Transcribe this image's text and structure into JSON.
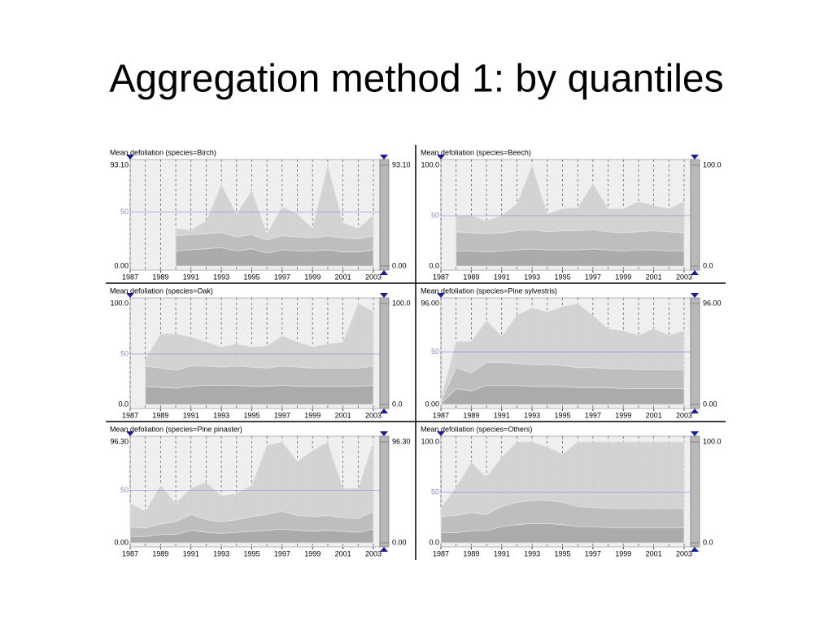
{
  "title": "Aggregation method 1: by quantiles",
  "chart_data": [
    {
      "type": "area",
      "title": "Mean defoliation (species=Birch)",
      "x": [
        1987,
        1988,
        1989,
        1990,
        1991,
        1992,
        1993,
        1994,
        1995,
        1996,
        1997,
        1998,
        1999,
        2000,
        2001,
        2002,
        2003
      ],
      "xlim": [
        1987,
        2003.43
      ],
      "xticks": [
        1987,
        1989,
        1991,
        1993,
        1995,
        1997,
        1999,
        2001,
        2003
      ],
      "ylim": [
        0,
        93.1
      ],
      "yticks": [
        {
          "value": 0,
          "label": "0.00"
        },
        50,
        {
          "value": 93.1,
          "label": "93.10"
        }
      ],
      "series": [
        {
          "color": "#d2d2d2",
          "values": [
            null,
            null,
            null,
            35,
            33,
            42,
            75,
            48,
            70,
            30,
            55,
            48,
            35,
            93.1,
            40,
            35,
            47
          ]
        },
        {
          "color": "#bdbdbd",
          "values": [
            null,
            null,
            null,
            28,
            29,
            30,
            31,
            27,
            29,
            24,
            28,
            27,
            26,
            28,
            26,
            25,
            28
          ]
        },
        {
          "color": "#aaaaaa",
          "values": [
            null,
            null,
            null,
            14,
            15,
            16,
            17,
            14,
            16,
            12,
            15,
            14,
            14,
            15,
            13,
            13,
            15
          ]
        }
      ]
    },
    {
      "type": "area",
      "title": "Mean defoliation (species=Beech)",
      "x": [
        1987,
        1988,
        1989,
        1990,
        1991,
        1992,
        1993,
        1994,
        1995,
        1996,
        1997,
        1998,
        1999,
        2000,
        2001,
        2002,
        2003
      ],
      "xlim": [
        1987,
        2003.43
      ],
      "xticks": [
        1987,
        1989,
        1991,
        1993,
        1995,
        1997,
        1999,
        2001,
        2003
      ],
      "ylim": [
        0,
        100
      ],
      "yticks": [
        {
          "value": 0,
          "label": "0.0"
        },
        50,
        {
          "value": 100,
          "label": "100.0"
        }
      ],
      "series": [
        {
          "color": "#d2d2d2",
          "values": [
            null,
            50,
            50,
            45,
            50,
            62,
            100,
            52,
            57,
            58,
            82,
            57,
            57,
            64,
            60,
            57,
            64
          ]
        },
        {
          "color": "#bdbdbd",
          "values": [
            null,
            34,
            33,
            32,
            33,
            35,
            36,
            34,
            35,
            35,
            36,
            34,
            33,
            34,
            35,
            34,
            33
          ]
        },
        {
          "color": "#aaaaaa",
          "values": [
            null,
            15,
            15,
            14,
            15,
            16,
            17,
            16,
            16,
            16,
            17,
            16,
            15,
            16,
            16,
            15,
            15
          ]
        }
      ]
    },
    {
      "type": "area",
      "title": "Mean defoliation (species=Oak)",
      "x": [
        1987,
        1988,
        1989,
        1990,
        1991,
        1992,
        1993,
        1994,
        1995,
        1996,
        1997,
        1998,
        1999,
        2000,
        2001,
        2002,
        2003
      ],
      "xlim": [
        1987,
        2003.43
      ],
      "xticks": [
        1987,
        1989,
        1991,
        1993,
        1995,
        1997,
        1999,
        2001,
        2003
      ],
      "ylim": [
        0,
        100
      ],
      "yticks": [
        {
          "value": 0,
          "label": "0.0"
        },
        50,
        {
          "value": 100,
          "label": "100.0"
        }
      ],
      "series": [
        {
          "color": "#d2d2d2",
          "values": [
            null,
            45,
            70,
            70,
            67,
            62,
            57,
            60,
            57,
            58,
            68,
            62,
            57,
            60,
            62,
            100,
            92
          ]
        },
        {
          "color": "#bdbdbd",
          "values": [
            null,
            38,
            36,
            34,
            38,
            38,
            37,
            38,
            37,
            36,
            38,
            37,
            36,
            36,
            36,
            36,
            38
          ]
        },
        {
          "color": "#aaaaaa",
          "values": [
            null,
            18,
            17,
            16,
            18,
            19,
            19,
            19,
            18,
            18,
            19,
            18,
            18,
            18,
            18,
            18,
            19
          ]
        }
      ]
    },
    {
      "type": "area",
      "title": "Mean defoliation (species=Pine sylvestris)",
      "x": [
        1987,
        1988,
        1989,
        1990,
        1991,
        1992,
        1993,
        1994,
        1995,
        1996,
        1997,
        1998,
        1999,
        2000,
        2001,
        2002,
        2003
      ],
      "xlim": [
        1987,
        2003.43
      ],
      "xticks": [
        1987,
        1989,
        1991,
        1993,
        1995,
        1997,
        1999,
        2001,
        2003
      ],
      "ylim": [
        0,
        96
      ],
      "yticks": [
        {
          "value": 0,
          "label": "0.00"
        },
        50,
        {
          "value": 96,
          "label": "96.00"
        }
      ],
      "series": [
        {
          "color": "#d2d2d2",
          "values": [
            5,
            60,
            60,
            80,
            65,
            85,
            92,
            88,
            93,
            96,
            85,
            72,
            70,
            66,
            72,
            66,
            70
          ]
        },
        {
          "color": "#bdbdbd",
          "values": [
            3,
            35,
            30,
            40,
            40,
            39,
            38,
            38,
            37,
            35,
            35,
            34,
            34,
            33,
            33,
            33,
            33
          ]
        },
        {
          "color": "#aaaaaa",
          "values": [
            1,
            15,
            13,
            18,
            18,
            18,
            17,
            17,
            17,
            16,
            16,
            16,
            15,
            15,
            15,
            15,
            15
          ]
        }
      ]
    },
    {
      "type": "area",
      "title": "Mean defoliation (species=Pine pinaster)",
      "x": [
        1987,
        1988,
        1989,
        1990,
        1991,
        1992,
        1993,
        1994,
        1995,
        1996,
        1997,
        1998,
        1999,
        2000,
        2001,
        2002,
        2003
      ],
      "xlim": [
        1987,
        2003.43
      ],
      "xticks": [
        1987,
        1989,
        1991,
        1993,
        1995,
        1997,
        1999,
        2001,
        2003
      ],
      "ylim": [
        0,
        96.3
      ],
      "yticks": [
        {
          "value": 0,
          "label": "0.00"
        },
        50,
        {
          "value": 96.3,
          "label": "96.30"
        }
      ],
      "series": [
        {
          "color": "#d2d2d2",
          "values": [
            38,
            30,
            55,
            38,
            52,
            58,
            45,
            47,
            55,
            93,
            96.3,
            78,
            88,
            96.3,
            52,
            52,
            96.3
          ]
        },
        {
          "color": "#bdbdbd",
          "values": [
            15,
            14,
            18,
            20,
            27,
            22,
            20,
            22,
            25,
            27,
            30,
            26,
            25,
            26,
            24,
            23,
            30
          ]
        },
        {
          "color": "#aaaaaa",
          "values": [
            6,
            6,
            8,
            8,
            12,
            10,
            9,
            10,
            11,
            12,
            13,
            12,
            11,
            12,
            11,
            10,
            13
          ]
        }
      ]
    },
    {
      "type": "area",
      "title": "Mean defoliation (species=Others)",
      "x": [
        1987,
        1988,
        1989,
        1990,
        1991,
        1992,
        1993,
        1994,
        1995,
        1996,
        1997,
        1998,
        1999,
        2000,
        2001,
        2002,
        2003
      ],
      "xlim": [
        1987,
        2003.43
      ],
      "xticks": [
        1987,
        1989,
        1991,
        1993,
        1995,
        1997,
        1999,
        2001,
        2003
      ],
      "ylim": [
        0,
        100
      ],
      "yticks": [
        {
          "value": 0,
          "label": "0.0"
        },
        50,
        {
          "value": 100,
          "label": "100.0"
        }
      ],
      "series": [
        {
          "color": "#d2d2d2",
          "values": [
            35,
            55,
            80,
            65,
            85,
            100,
            100,
            95,
            88,
            100,
            100,
            100,
            100,
            100,
            100,
            100,
            100
          ]
        },
        {
          "color": "#bdbdbd",
          "values": [
            26,
            27,
            30,
            28,
            36,
            40,
            42,
            42,
            40,
            36,
            35,
            34,
            34,
            34,
            34,
            34,
            34
          ]
        },
        {
          "color": "#aaaaaa",
          "values": [
            10,
            10,
            12,
            12,
            16,
            18,
            19,
            19,
            18,
            16,
            16,
            15,
            15,
            15,
            15,
            15,
            15
          ]
        }
      ]
    }
  ]
}
